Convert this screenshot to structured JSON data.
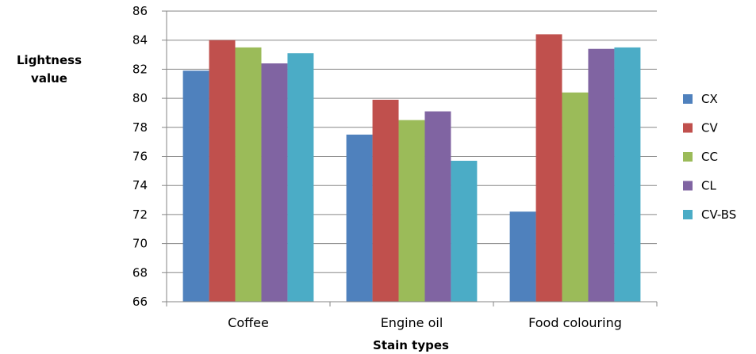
{
  "chart_data": {
    "type": "bar",
    "categories": [
      "Coffee",
      "Engine oil",
      "Food colouring"
    ],
    "series": [
      {
        "name": "CX",
        "values": [
          81.9,
          77.5,
          72.2
        ],
        "color": "#4F81BD"
      },
      {
        "name": "CV",
        "values": [
          84.0,
          79.9,
          84.4
        ],
        "color": "#C0504D"
      },
      {
        "name": "CC",
        "values": [
          83.5,
          78.5,
          80.4
        ],
        "color": "#9BBB59"
      },
      {
        "name": "CL",
        "values": [
          82.4,
          79.1,
          83.4
        ],
        "color": "#8064A2"
      },
      {
        "name": "CV-BS",
        "values": [
          83.1,
          75.7,
          83.5
        ],
        "color": "#4BACC6"
      }
    ],
    "xlabel": "Stain types",
    "ylabel_line1": "Lightness",
    "ylabel_line2": "value",
    "ylim": [
      66,
      86
    ],
    "yticks": [
      66,
      68,
      70,
      72,
      74,
      76,
      78,
      80,
      82,
      84,
      86
    ],
    "grid": true,
    "legend_position": "right"
  }
}
